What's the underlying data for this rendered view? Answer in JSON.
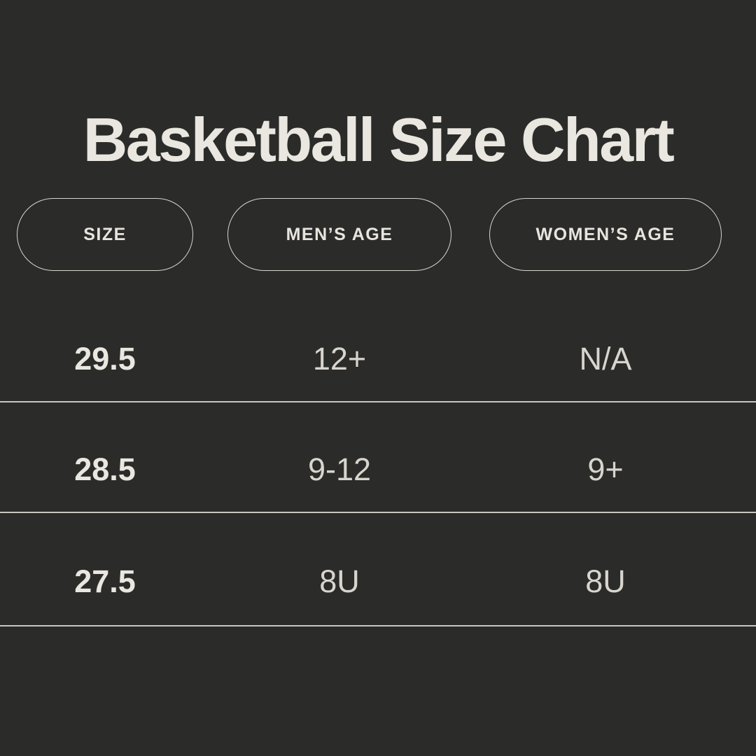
{
  "title": "Basketball Size Chart",
  "colors": {
    "background": "#2b2b29",
    "title_text": "#e9e7e0",
    "pill_border": "#d8d5ce",
    "pill_text": "#e7e5de",
    "cell_text": "#d8d5ce",
    "size_cell_text": "#e9e7e0",
    "divider": "#c9c6bf"
  },
  "columns": [
    {
      "label": "SIZE"
    },
    {
      "label": "MEN’S AGE"
    },
    {
      "label": "WOMEN’S AGE"
    }
  ],
  "rows": [
    {
      "size": "29.5",
      "mens_age": "12+",
      "womens_age": "N/A"
    },
    {
      "size": "28.5",
      "mens_age": "9-12",
      "womens_age": "9+"
    },
    {
      "size": "27.5",
      "mens_age": "8U",
      "womens_age": "8U"
    }
  ],
  "chart_data": {
    "type": "table",
    "title": "Basketball Size Chart",
    "columns": [
      "SIZE",
      "MEN’S AGE",
      "WOMEN’S AGE"
    ],
    "rows": [
      [
        "29.5",
        "12+",
        "N/A"
      ],
      [
        "28.5",
        "9-12",
        "9+"
      ],
      [
        "27.5",
        "8U",
        "8U"
      ]
    ]
  }
}
